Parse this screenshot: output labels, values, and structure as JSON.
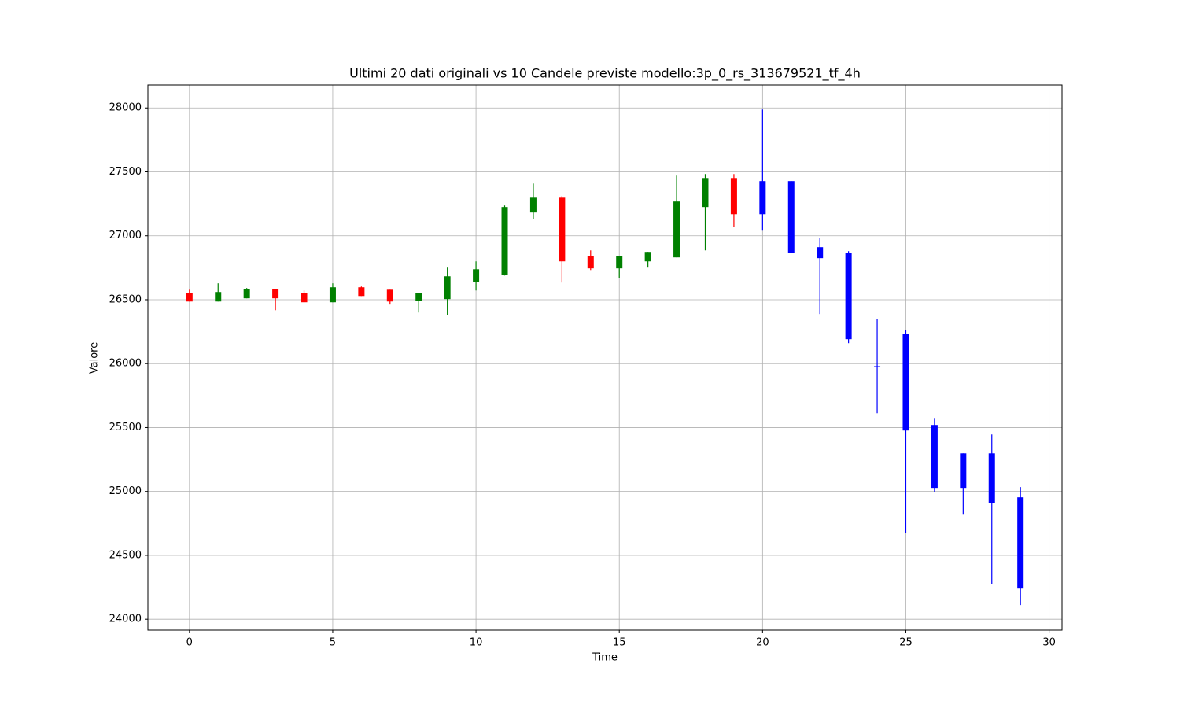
{
  "chart_data": {
    "type": "candlestick",
    "title": "Ultimi 20 dati originali vs 10 Candele previste modello:3p_0_rs_313679521_tf_4h",
    "xlabel": "Time",
    "ylabel": "Valore",
    "xlim": [
      -1.45,
      30.45
    ],
    "xticks": [
      0,
      5,
      10,
      15,
      20,
      25,
      30
    ],
    "ylim": [
      23915,
      28180
    ],
    "yticks": [
      24000,
      24500,
      25000,
      25500,
      26000,
      26500,
      27000,
      27500,
      28000
    ],
    "grid": true,
    "series": [
      {
        "up_color": "green",
        "down_color": "red",
        "x": [
          0,
          1,
          2,
          3,
          4,
          5,
          6,
          7,
          8,
          9,
          10,
          11,
          12,
          13,
          14,
          15,
          16,
          17,
          18,
          19
        ],
        "open": [
          26554,
          26486,
          26511,
          26585,
          26554,
          26480,
          26597,
          26578,
          26492,
          26505,
          26640,
          26695,
          27182,
          27298,
          26843,
          26745,
          26800,
          26831,
          27225,
          27452
        ],
        "high": [
          26578,
          26628,
          26591,
          26585,
          26572,
          26628,
          26603,
          26578,
          26554,
          26751,
          26800,
          27237,
          27409,
          27311,
          26886,
          26843,
          26874,
          27471,
          27483,
          27483
        ],
        "low": [
          26486,
          26486,
          26511,
          26418,
          26480,
          26480,
          26529,
          26462,
          26400,
          26382,
          26572,
          26689,
          27132,
          26634,
          26732,
          26671,
          26751,
          26831,
          26886,
          27071
        ],
        "close": [
          26486,
          26560,
          26585,
          26511,
          26480,
          26597,
          26529,
          26486,
          26554,
          26683,
          26738,
          27225,
          27298,
          26800,
          26745,
          26843,
          26874,
          27268,
          27452,
          27169
        ]
      },
      {
        "color": "blue",
        "x": [
          20,
          21,
          22,
          23,
          24,
          25,
          26,
          27,
          28,
          29
        ],
        "open": [
          27169,
          27428,
          26911,
          26868,
          25980,
          26234,
          25520,
          25298,
          25298,
          24954
        ],
        "high": [
          27988,
          27428,
          26985,
          26880,
          26351,
          26265,
          25575,
          25298,
          25446,
          25034
        ],
        "low": [
          27040,
          26868,
          26388,
          26160,
          25612,
          24677,
          24997,
          24818,
          24277,
          24111
        ],
        "close": [
          27428,
          26868,
          26825,
          26191,
          25980,
          25477,
          25028,
          25028,
          24911,
          24240
        ]
      }
    ]
  }
}
